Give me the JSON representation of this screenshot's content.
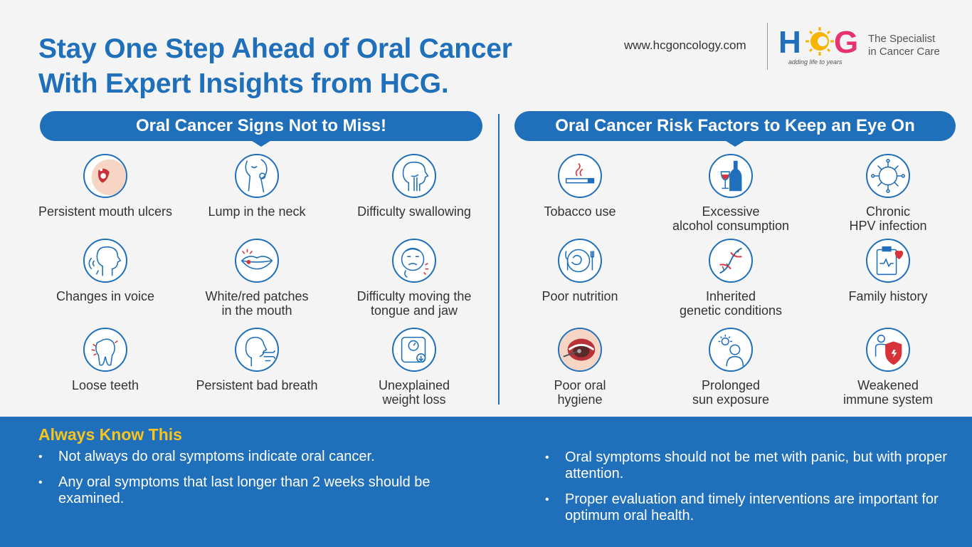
{
  "header": {
    "title_line1": "Stay One Step Ahead of Oral Cancer",
    "title_line2": "With Expert Insights from HCG.",
    "website": "www.hcgoncology.com",
    "logo_text": "HCG",
    "logo_tagline": "adding life to years",
    "specialist_line1": "The Specialist",
    "specialist_line2": "in Cancer Care",
    "brand_colors": {
      "blue": "#1f6fba",
      "yellow": "#f7b500",
      "pink": "#e6336f"
    }
  },
  "signs": {
    "heading": "Oral Cancer Signs Not to Miss!",
    "items": [
      {
        "icon": "mouth-ulcer-icon",
        "line1": "Persistent mouth ulcers",
        "line2": ""
      },
      {
        "icon": "neck-lump-icon",
        "line1": "Lump in the neck",
        "line2": ""
      },
      {
        "icon": "swallowing-icon",
        "line1": "Difficulty swallowing",
        "line2": ""
      },
      {
        "icon": "voice-change-icon",
        "line1": "Changes in voice",
        "line2": ""
      },
      {
        "icon": "lips-patch-icon",
        "line1": "White/red patches",
        "line2": "in the mouth"
      },
      {
        "icon": "jaw-pain-icon",
        "line1": "Difficulty moving the",
        "line2": "tongue and jaw"
      },
      {
        "icon": "loose-tooth-icon",
        "line1": "Loose teeth",
        "line2": ""
      },
      {
        "icon": "bad-breath-icon",
        "line1": "Persistent bad breath",
        "line2": ""
      },
      {
        "icon": "weight-scale-icon",
        "line1": "Unexplained",
        "line2": "weight loss"
      }
    ]
  },
  "risks": {
    "heading": "Oral Cancer Risk Factors to Keep an Eye On",
    "items": [
      {
        "icon": "cigarette-icon",
        "line1": "Tobacco use",
        "line2": ""
      },
      {
        "icon": "alcohol-icon",
        "line1": "Excessive",
        "line2": "alcohol consumption"
      },
      {
        "icon": "virus-icon",
        "line1": "Chronic",
        "line2": "HPV infection"
      },
      {
        "icon": "nutrition-icon",
        "line1": "Poor nutrition",
        "line2": ""
      },
      {
        "icon": "dna-icon",
        "line1": "Inherited",
        "line2": "genetic conditions"
      },
      {
        "icon": "family-history-icon",
        "line1": "Family history",
        "line2": ""
      },
      {
        "icon": "oral-hygiene-icon",
        "line1": "Poor oral",
        "line2": "hygiene"
      },
      {
        "icon": "sun-exposure-icon",
        "line1": "Prolonged",
        "line2": "sun exposure"
      },
      {
        "icon": "weak-immunity-icon",
        "line1": "Weakened",
        "line2": "immune system"
      }
    ]
  },
  "always_know": {
    "heading": "Always Know This",
    "left": [
      "Not always do oral symptoms indicate oral cancer.",
      "Any oral symptoms that last longer than 2 weeks should be examined."
    ],
    "right": [
      "Oral symptoms should not be met with panic, but with proper attention.",
      "Proper evaluation and timely interventions are important for optimum oral health."
    ]
  }
}
